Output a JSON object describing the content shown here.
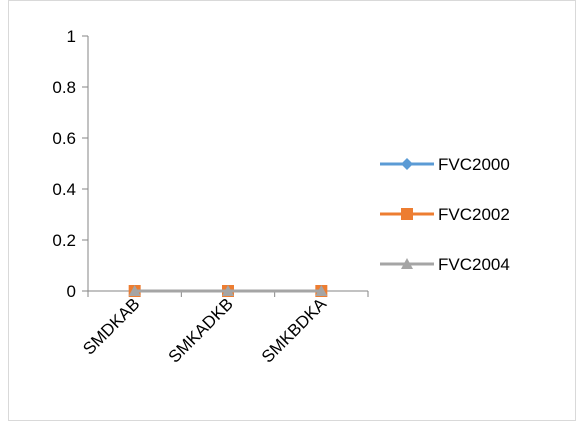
{
  "chart_data": {
    "type": "line",
    "categories": [
      "SMDKAB",
      "SMKADKB",
      "SMKBDKA"
    ],
    "series": [
      {
        "name": "FVC2000",
        "values": [
          0,
          0,
          0
        ],
        "color": "#5B9BD5",
        "marker": "diamond"
      },
      {
        "name": "FVC2002",
        "values": [
          0,
          0,
          0
        ],
        "color": "#ED7D31",
        "marker": "square"
      },
      {
        "name": "FVC2004",
        "values": [
          0,
          0,
          0
        ],
        "color": "#A5A5A5",
        "marker": "triangle"
      }
    ],
    "y_ticks": [
      "0",
      "0.2",
      "0.4",
      "0.6",
      "0.8",
      "1"
    ],
    "ylim": [
      0,
      1
    ],
    "grid": false,
    "legend_position": "right",
    "frame_color": "#D9D9D9",
    "axis_color": "#868686"
  }
}
